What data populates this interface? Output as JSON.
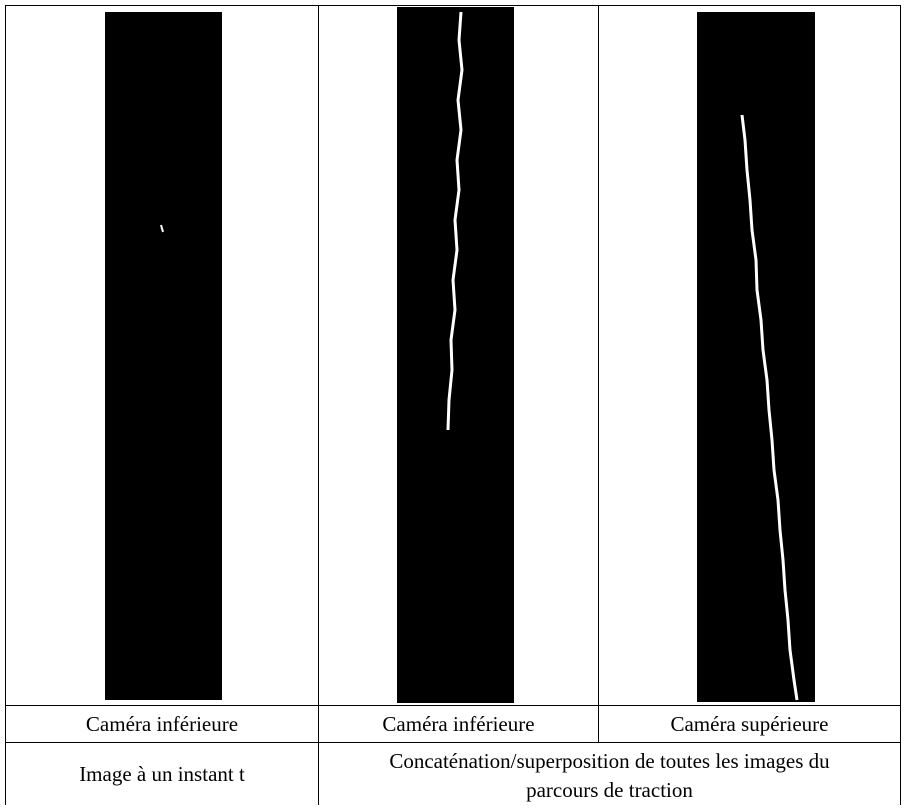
{
  "table": {
    "rows": [
      [
        "Caméra inférieure",
        "Caméra inférieure",
        "Caméra supérieure"
      ],
      [
        "Image à un instant t",
        "Concaténation/superposition de toutes les images du parcours de traction"
      ]
    ]
  }
}
